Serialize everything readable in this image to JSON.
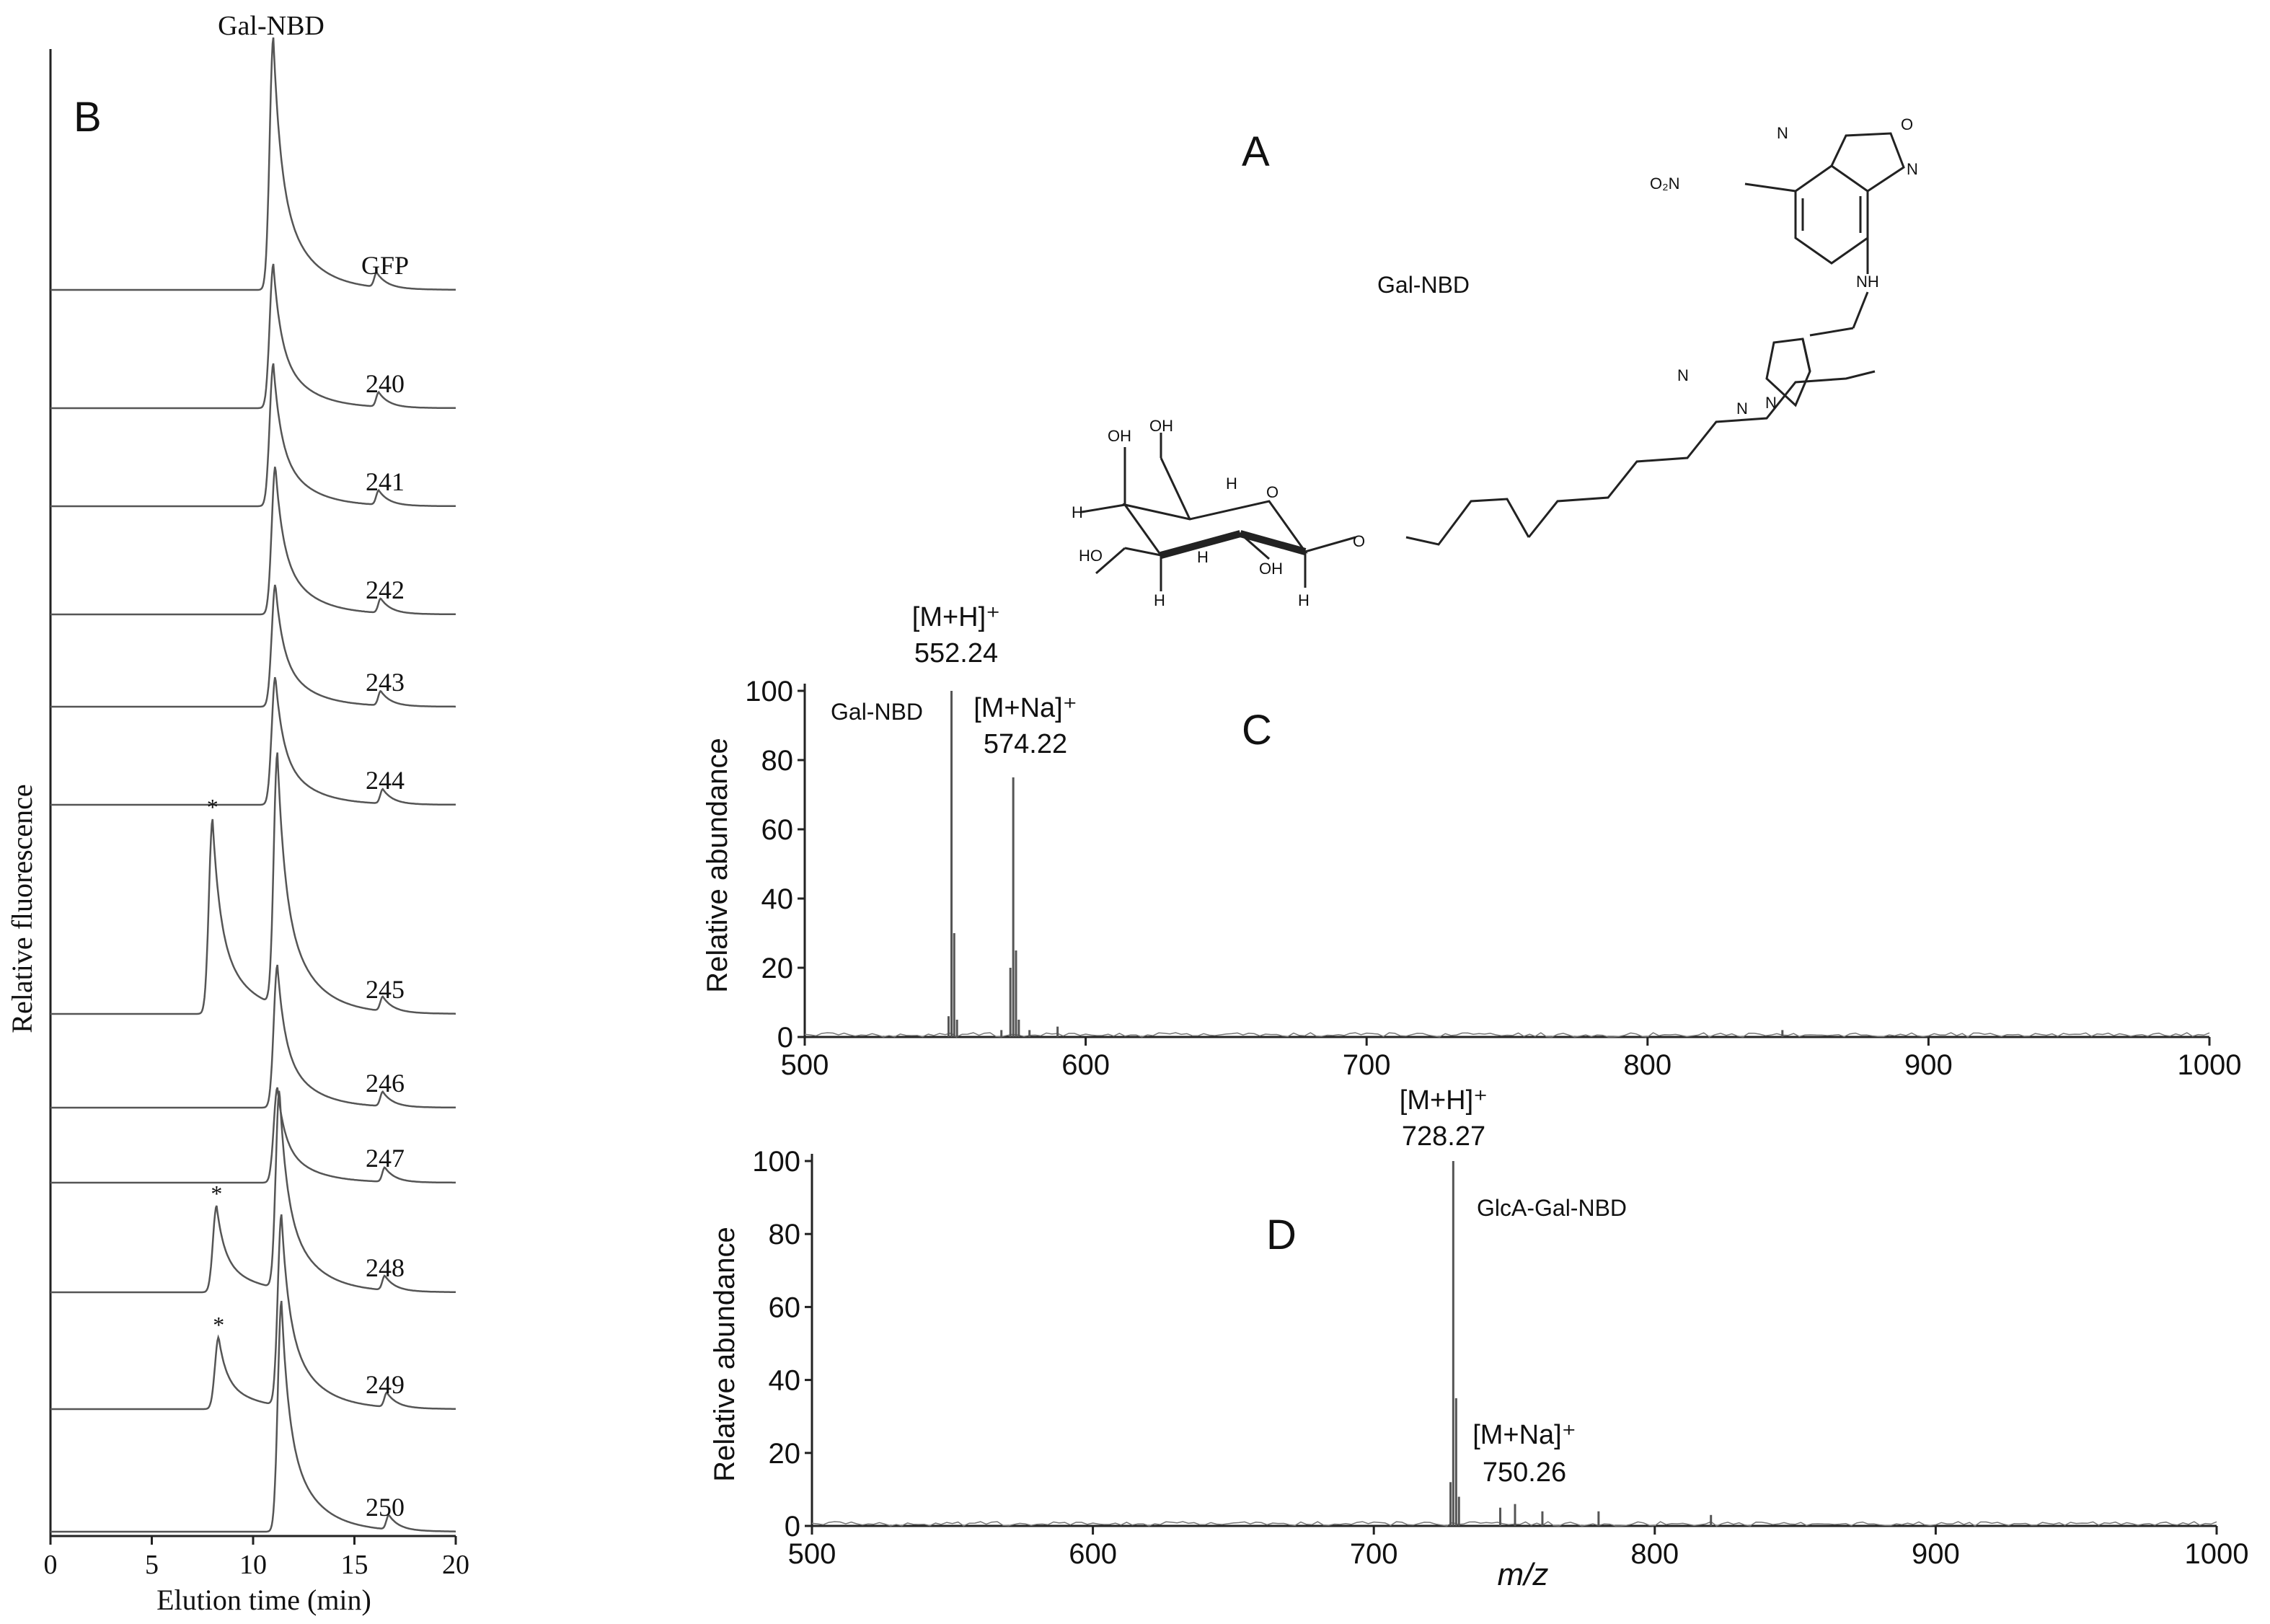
{
  "panel_labels": {
    "a": "A",
    "b": "B",
    "c": "C",
    "d": "D"
  },
  "structure": {
    "name": "Gal-NBD",
    "atoms": {
      "nitro": "O₂N",
      "ring_n1": "N",
      "ring_o": "O",
      "ring_n2": "N",
      "nh": "NH",
      "triazole_n1": "N",
      "triazole_n2": "N",
      "triazole_n3": "N",
      "oh_a": "OH",
      "oh_b": "OH",
      "oh_c": "OH",
      "ho": "HO",
      "o_ring": "O",
      "o_link": "O",
      "h": "H"
    }
  },
  "chart_data": [
    {
      "id": "B",
      "type": "line",
      "title": "Gal-NBD",
      "xlabel": "Elution time (min)",
      "ylabel": "Relative fluorescence",
      "xlim": [
        0,
        20
      ],
      "xticks": [
        "0",
        "5",
        "10",
        "15",
        "20"
      ],
      "main_peak_time": 11.0,
      "series": [
        {
          "name": "GFP",
          "main_peak": 11.0,
          "minor_peak": 16.1,
          "star": null
        },
        {
          "name": "240",
          "main_peak": 11.0,
          "minor_peak": 16.2,
          "star": null
        },
        {
          "name": "241",
          "main_peak": 11.0,
          "minor_peak": 16.2,
          "star": null
        },
        {
          "name": "242",
          "main_peak": 11.1,
          "minor_peak": 16.3,
          "star": null
        },
        {
          "name": "243",
          "main_peak": 11.1,
          "minor_peak": 16.3,
          "star": null
        },
        {
          "name": "244",
          "main_peak": 11.1,
          "minor_peak": 16.4,
          "star": null
        },
        {
          "name": "245",
          "main_peak": 11.2,
          "minor_peak": 16.4,
          "star": 8.0
        },
        {
          "name": "246",
          "main_peak": 11.2,
          "minor_peak": 16.4,
          "star": null
        },
        {
          "name": "247",
          "main_peak": 11.2,
          "minor_peak": 16.5,
          "star": null
        },
        {
          "name": "248",
          "main_peak": 11.3,
          "minor_peak": 16.5,
          "star": 8.2
        },
        {
          "name": "249",
          "main_peak": 11.4,
          "minor_peak": 16.6,
          "star": 8.3
        },
        {
          "name": "250",
          "main_peak": 11.4,
          "minor_peak": 16.7,
          "star": null
        }
      ],
      "star_symbol": "*"
    },
    {
      "id": "C",
      "type": "bar",
      "ylabel": "Relative abundance",
      "xlim": [
        500,
        1000
      ],
      "ylim": [
        0,
        100
      ],
      "xticks": [
        "500",
        "600",
        "700",
        "800",
        "900",
        "1000"
      ],
      "yticks": [
        "0",
        "20",
        "40",
        "60",
        "80",
        "100"
      ],
      "compound": "Gal-NBD",
      "annotations": [
        {
          "ion": "[M+H]⁺",
          "mz": "552.24"
        },
        {
          "ion": "[M+Na]⁺",
          "mz": "574.22"
        }
      ],
      "peaks": [
        {
          "mz": 551.2,
          "value": 6
        },
        {
          "mz": 552.24,
          "value": 100
        },
        {
          "mz": 553.2,
          "value": 30
        },
        {
          "mz": 554.2,
          "value": 5
        },
        {
          "mz": 570.0,
          "value": 2
        },
        {
          "mz": 573.2,
          "value": 20
        },
        {
          "mz": 574.22,
          "value": 75
        },
        {
          "mz": 575.2,
          "value": 25
        },
        {
          "mz": 576.2,
          "value": 5
        },
        {
          "mz": 580.0,
          "value": 2
        },
        {
          "mz": 590.0,
          "value": 3
        },
        {
          "mz": 848.0,
          "value": 2
        }
      ]
    },
    {
      "id": "D",
      "type": "bar",
      "xlabel": "m/z",
      "ylabel": "Relative abundance",
      "xlim": [
        500,
        1000
      ],
      "ylim": [
        0,
        100
      ],
      "xticks": [
        "500",
        "600",
        "700",
        "800",
        "900",
        "1000"
      ],
      "yticks": [
        "0",
        "20",
        "40",
        "60",
        "80",
        "100"
      ],
      "compound": "GlcA-Gal-NBD",
      "annotations": [
        {
          "ion": "[M+H]⁺",
          "mz": "728.27"
        },
        {
          "ion": "[M+Na]⁺",
          "mz": "750.26"
        }
      ],
      "peaks": [
        {
          "mz": 727.3,
          "value": 12
        },
        {
          "mz": 728.27,
          "value": 100
        },
        {
          "mz": 729.3,
          "value": 35
        },
        {
          "mz": 730.3,
          "value": 8
        },
        {
          "mz": 745.0,
          "value": 5
        },
        {
          "mz": 750.26,
          "value": 6
        },
        {
          "mz": 760.0,
          "value": 4
        },
        {
          "mz": 780.0,
          "value": 4
        },
        {
          "mz": 820.0,
          "value": 3
        }
      ]
    }
  ]
}
